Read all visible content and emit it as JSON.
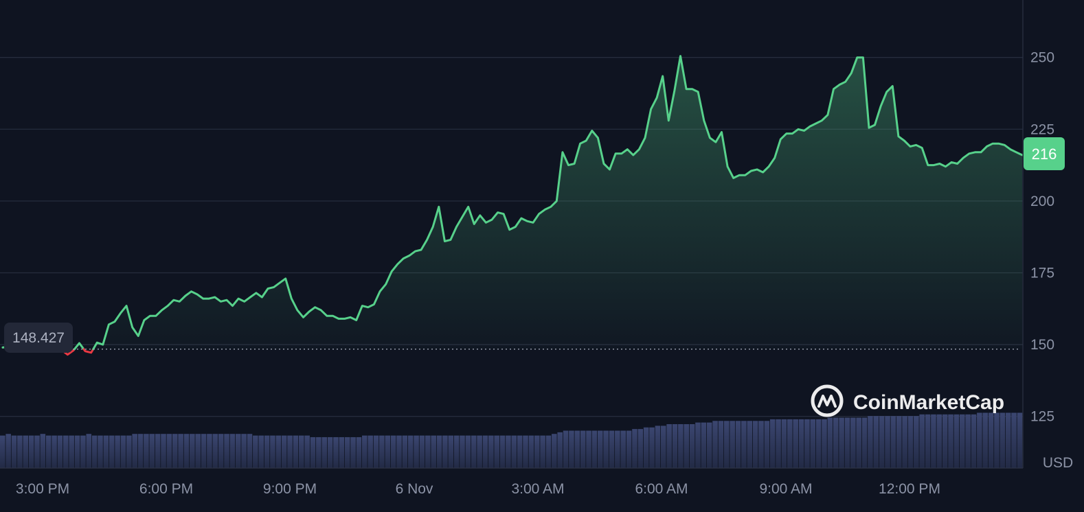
{
  "chart_data": {
    "type": "area",
    "x_tick_labels": [
      "3:00 PM",
      "6:00 PM",
      "9:00 PM",
      "6 Nov",
      "3:00 AM",
      "6:00 AM",
      "9:00 AM",
      "12:00 PM"
    ],
    "y_ticks": [
      125,
      150,
      175,
      200,
      225,
      250
    ],
    "ylim": [
      107,
      270
    ],
    "ylabel": "USD",
    "reference_value": 148.427,
    "reference_label": "148.427",
    "current_value": 216,
    "current_label": "216",
    "up_color": "#57d18b",
    "down_color": "#ea3943",
    "grid": true,
    "watermark": "CoinMarketCap",
    "series": [
      {
        "values": [
          149.0,
          149.2,
          149.6,
          149.9,
          150.5,
          149.6,
          150.3,
          149.1,
          148.3,
          147.6,
          148.1,
          146.5,
          148.0,
          150.5,
          147.7,
          147.2,
          150.7,
          150.0,
          157.0,
          158.0,
          161.0,
          163.5,
          156.0,
          153.0,
          158.5,
          160.0,
          160.0,
          162.0,
          163.5,
          165.5,
          165.0,
          167.0,
          168.5,
          167.5,
          166.0,
          166.0,
          166.5,
          165.0,
          165.5,
          163.5,
          166.0,
          165.0,
          166.5,
          168.0,
          166.5,
          169.5,
          170.0,
          171.5,
          173.0,
          166.0,
          162.0,
          159.5,
          161.5,
          163.0,
          162.0,
          160.0,
          160.0,
          159.0,
          159.0,
          159.5,
          158.5,
          163.5,
          163.0,
          164.0,
          168.5,
          171.0,
          175.5,
          178.0,
          180.0,
          181.0,
          182.5,
          183.0,
          186.5,
          191.0,
          198.0,
          186.0,
          186.5,
          191.0,
          194.5,
          198.0,
          192.0,
          195.0,
          192.5,
          193.5,
          196.0,
          195.5,
          190.0,
          191.0,
          194.0,
          193.0,
          192.5,
          195.5,
          197.0,
          198.0,
          200.0,
          217.0,
          212.5,
          213.0,
          220.0,
          221.0,
          224.5,
          222.0,
          213.0,
          211.0,
          216.5,
          216.5,
          218.0,
          216.0,
          218.0,
          222.0,
          232.0,
          236.0,
          243.5,
          228.0,
          238.5,
          250.5,
          239.0,
          239.0,
          238.0,
          228.0,
          222.0,
          220.5,
          224.0,
          212.0,
          208.0,
          209.0,
          209.0,
          210.5,
          211.0,
          210.0,
          212.0,
          215.0,
          221.5,
          223.5,
          223.5,
          225.0,
          224.5,
          226.0,
          227.0,
          228.0,
          230.0,
          239.0,
          240.5,
          241.5,
          244.5,
          250.0,
          250.0,
          225.5,
          226.5,
          233.0,
          238.0,
          240.0,
          222.5,
          221.0,
          219.0,
          219.5,
          218.5,
          212.5,
          212.5,
          213.0,
          212.0,
          213.5,
          213.0,
          215.0,
          216.5,
          217.0,
          217.0,
          219.0,
          220.0,
          220.0,
          219.5,
          218.0,
          217.0,
          216.0
        ]
      }
    ],
    "volume_values": [
      0.2,
      0.21,
      0.2,
      0.2,
      0.2,
      0.2,
      0.2,
      0.21,
      0.2,
      0.2,
      0.2,
      0.2,
      0.2,
      0.2,
      0.2,
      0.21,
      0.2,
      0.2,
      0.2,
      0.2,
      0.2,
      0.2,
      0.2,
      0.21,
      0.21,
      0.21,
      0.21,
      0.21,
      0.21,
      0.21,
      0.21,
      0.21,
      0.21,
      0.21,
      0.21,
      0.21,
      0.21,
      0.21,
      0.21,
      0.21,
      0.21,
      0.21,
      0.21,
      0.21,
      0.2,
      0.2,
      0.2,
      0.2,
      0.2,
      0.2,
      0.2,
      0.2,
      0.2,
      0.2,
      0.19,
      0.19,
      0.19,
      0.19,
      0.19,
      0.19,
      0.19,
      0.19,
      0.19,
      0.2,
      0.2,
      0.2,
      0.2,
      0.2,
      0.2,
      0.2,
      0.2,
      0.2,
      0.2,
      0.2,
      0.2,
      0.2,
      0.2,
      0.2,
      0.2,
      0.2,
      0.2,
      0.2,
      0.2,
      0.2,
      0.2,
      0.2,
      0.2,
      0.2,
      0.2,
      0.2,
      0.2,
      0.2,
      0.2,
      0.2,
      0.2,
      0.2,
      0.21,
      0.22,
      0.23,
      0.23,
      0.23,
      0.23,
      0.23,
      0.23,
      0.23,
      0.23,
      0.23,
      0.23,
      0.23,
      0.23,
      0.24,
      0.24,
      0.25,
      0.25,
      0.26,
      0.26,
      0.27,
      0.27,
      0.27,
      0.27,
      0.27,
      0.28,
      0.28,
      0.28,
      0.29,
      0.29,
      0.29,
      0.29,
      0.29,
      0.29,
      0.29,
      0.29,
      0.29,
      0.29,
      0.3,
      0.3,
      0.3,
      0.3,
      0.3,
      0.3,
      0.3,
      0.3,
      0.3,
      0.3,
      0.31,
      0.31,
      0.31,
      0.31,
      0.31,
      0.31,
      0.31,
      0.32,
      0.32,
      0.32,
      0.32,
      0.32,
      0.32,
      0.32,
      0.32,
      0.32,
      0.33,
      0.33,
      0.33,
      0.33,
      0.33,
      0.33,
      0.33,
      0.33,
      0.33,
      0.33,
      0.34,
      0.34,
      0.34,
      0.34,
      0.34,
      0.34,
      0.34,
      0.34
    ]
  }
}
